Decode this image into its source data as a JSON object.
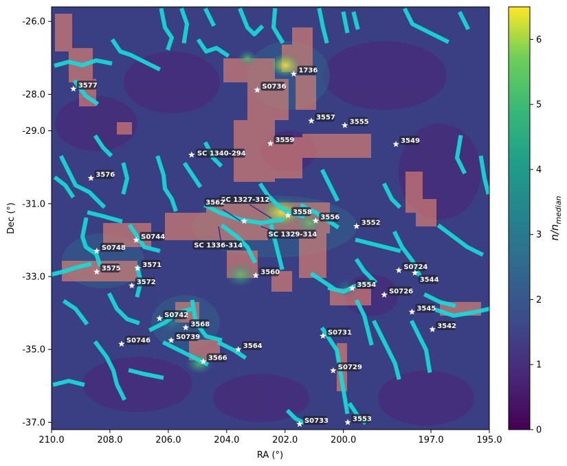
{
  "chart_data": {
    "type": "heatmap",
    "title": "",
    "xlabel": "RA (°)",
    "ylabel": "Dec (°)",
    "xlim": [
      210.0,
      195.0
    ],
    "ylim": [
      -37.2,
      -25.6
    ],
    "xticks": [
      210.0,
      208.0,
      206.0,
      204.0,
      202.0,
      200.0,
      197.0,
      195.0
    ],
    "xtick_labels": [
      "210.0",
      "208.0",
      "206.0",
      "204.0",
      "202.0",
      "200.0",
      "197.0",
      "195.0"
    ],
    "yticks": [
      -26.0,
      -28.0,
      -29.0,
      -31.0,
      -33.0,
      -35.0,
      -37.0
    ],
    "ytick_labels": [
      "-26.0",
      "-28.0",
      "-29.0",
      "-31.0",
      "-33.0",
      "-35.0",
      "-37.0"
    ],
    "colorbar": {
      "label": "n/n_median",
      "range": [
        0,
        6.5
      ],
      "ticks": [
        "0",
        "1",
        "2",
        "3",
        "4",
        "5",
        "6"
      ],
      "colormap": "viridis"
    },
    "overlay_colors": {
      "filaments": "#17dbd8",
      "supercluster_regions": "#e8876f"
    },
    "clusters": [
      {
        "name": "1736",
        "ra": 201.7,
        "dec": -27.44
      },
      {
        "name": "S0736",
        "ra": 202.95,
        "dec": -27.88
      },
      {
        "name": "3577",
        "ra": 209.25,
        "dec": -27.85
      },
      {
        "name": "3557",
        "ra": 201.1,
        "dec": -28.73
      },
      {
        "name": "3555",
        "ra": 199.95,
        "dec": -28.85
      },
      {
        "name": "3549",
        "ra": 198.2,
        "dec": -29.37
      },
      {
        "name": "3559",
        "ra": 202.5,
        "dec": -29.35
      },
      {
        "name": "SC 1340-294",
        "ra": 205.2,
        "dec": -29.66
      },
      {
        "name": "3576",
        "ra": 208.65,
        "dec": -30.3
      },
      {
        "name": "SC 1327-312",
        "ra": 202.5,
        "dec": -31.42
      },
      {
        "name": "3562",
        "ra": 203.4,
        "dec": -31.48
      },
      {
        "name": "SC 1336-314",
        "ra": 204.2,
        "dec": -31.62
      },
      {
        "name": "SC 1329-314",
        "ra": 202.9,
        "dec": -31.62
      },
      {
        "name": "3558",
        "ra": 201.9,
        "dec": -31.32
      },
      {
        "name": "3556",
        "ra": 200.95,
        "dec": -31.47
      },
      {
        "name": "3552",
        "ra": 199.55,
        "dec": -31.62
      },
      {
        "name": "S0744",
        "ra": 207.1,
        "dec": -32.0
      },
      {
        "name": "S0748",
        "ra": 208.45,
        "dec": -32.3
      },
      {
        "name": "3575",
        "ra": 208.45,
        "dec": -32.87
      },
      {
        "name": "3571",
        "ra": 207.05,
        "dec": -32.77
      },
      {
        "name": "3572",
        "ra": 207.25,
        "dec": -33.25
      },
      {
        "name": "3560",
        "ra": 203.0,
        "dec": -32.97
      },
      {
        "name": "S0724",
        "ra": 198.1,
        "dec": -32.83
      },
      {
        "name": "3544",
        "ra": 197.55,
        "dec": -32.9
      },
      {
        "name": "3554",
        "ra": 199.7,
        "dec": -33.32
      },
      {
        "name": "S0726",
        "ra": 198.6,
        "dec": -33.5
      },
      {
        "name": "S0742",
        "ra": 206.3,
        "dec": -34.15
      },
      {
        "name": "3545",
        "ra": 197.65,
        "dec": -33.97
      },
      {
        "name": "3568",
        "ra": 205.4,
        "dec": -34.4
      },
      {
        "name": "3542",
        "ra": 196.95,
        "dec": -34.45
      },
      {
        "name": "S0731",
        "ra": 200.7,
        "dec": -34.63
      },
      {
        "name": "S0746",
        "ra": 207.6,
        "dec": -34.85
      },
      {
        "name": "S0739",
        "ra": 205.9,
        "dec": -34.75
      },
      {
        "name": "3564",
        "ra": 203.6,
        "dec": -35.0
      },
      {
        "name": "3566",
        "ra": 204.8,
        "dec": -35.33
      },
      {
        "name": "S0729",
        "ra": 200.35,
        "dec": -35.58
      },
      {
        "name": "S0733",
        "ra": 201.5,
        "dec": -37.05
      },
      {
        "name": "3553",
        "ra": 199.85,
        "dec": -37.0
      }
    ]
  }
}
